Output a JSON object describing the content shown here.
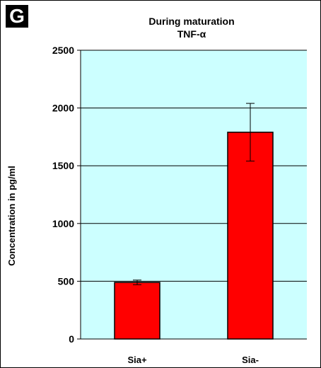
{
  "panel_label": "G",
  "chart_data": {
    "type": "bar",
    "title": "During maturation",
    "subtitle": "TNF-α",
    "xlabel": "",
    "ylabel": "Concentration in pg/ml",
    "categories": [
      "Sia+",
      "Sia-"
    ],
    "values": [
      490,
      1790
    ],
    "error": [
      20,
      250
    ],
    "ylim": [
      0,
      2500
    ],
    "yticks": [
      0,
      500,
      1000,
      1500,
      2000,
      2500
    ],
    "grid": true,
    "legend": "none",
    "colors": {
      "plot_background": "#ccffff",
      "bar": "#ff0000",
      "bar_edge": "#000000",
      "gridline": "#000000"
    }
  }
}
